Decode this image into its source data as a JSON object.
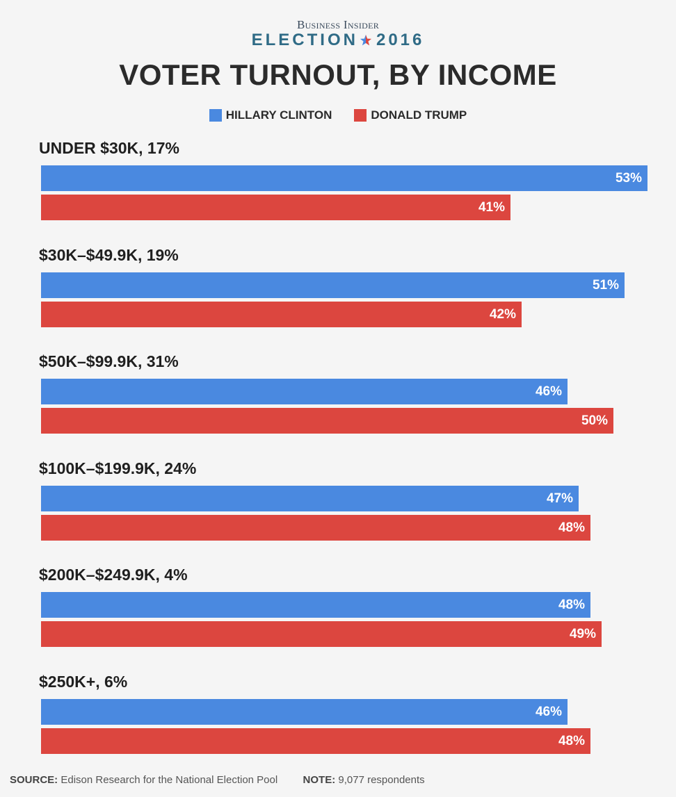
{
  "brand": {
    "publisher": "Business Insider",
    "election_left": "ELECTION",
    "election_right": "2016"
  },
  "colors": {
    "clinton": "#4a89e0",
    "trump": "#dc463f",
    "background": "#f5f5f5"
  },
  "chart_data": {
    "type": "bar",
    "orientation": "horizontal",
    "title": "VOTER TURNOUT, BY INCOME",
    "categories": [
      "UNDER $30K, 17%",
      "$30K–$49.9K, 19%",
      "$50K–$99.9K, 31%",
      "$100K–$199.9K, 24%",
      "$200K–$249.9K, 4%",
      "$250K+, 6%"
    ],
    "series": [
      {
        "name": "HILLARY CLINTON",
        "values": [
          53,
          51,
          46,
          47,
          48,
          46
        ],
        "labels": [
          "53%",
          "51%",
          "46%",
          "47%",
          "48%",
          "46%"
        ]
      },
      {
        "name": "DONALD TRUMP",
        "values": [
          41,
          42,
          50,
          48,
          49,
          48
        ],
        "labels": [
          "41%",
          "42%",
          "50%",
          "48%",
          "49%",
          "48%"
        ]
      }
    ],
    "xlim": [
      0,
      53
    ],
    "grid": false,
    "legend_position": "top-center"
  },
  "footer": {
    "source_label": "SOURCE:",
    "source_text": "Edison Research for the National Election Pool",
    "note_label": "NOTE:",
    "note_text": "9,077 respondents"
  }
}
